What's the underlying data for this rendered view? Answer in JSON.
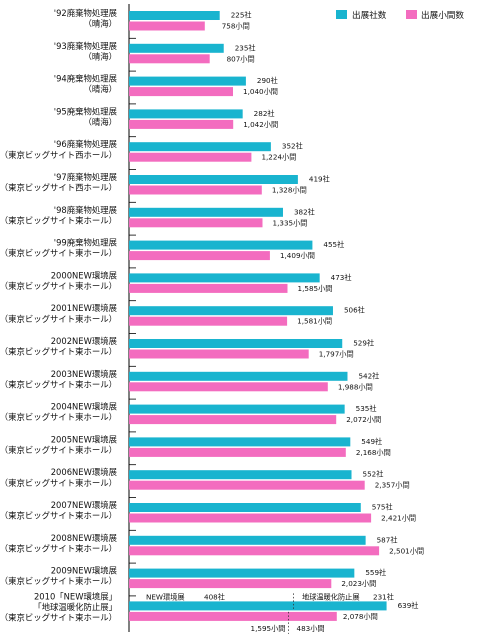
{
  "chart_data": {
    "type": "bar",
    "orientation": "horizontal",
    "series": [
      {
        "name": "出展社数",
        "color": "#19b4cf"
      },
      {
        "name": "出展小間数",
        "color": "#f36cbf"
      }
    ],
    "legend_position": "top-right",
    "rows": [
      {
        "label": [
          "'92廃棄物処理展",
          "（晴海）"
        ],
        "companies": 225,
        "companies_label": "225社",
        "booths": 758,
        "booths_label": "758小間"
      },
      {
        "label": [
          "'93廃棄物処理展",
          "（晴海）"
        ],
        "companies": 235,
        "companies_label": "235社",
        "booths": 807,
        "booths_label": "807小間"
      },
      {
        "label": [
          "'94廃棄物処理展",
          "（晴海）"
        ],
        "companies": 290,
        "companies_label": "290社",
        "booths": 1040,
        "booths_label": "1,040小間"
      },
      {
        "label": [
          "'95廃棄物処理展",
          "（晴海）"
        ],
        "companies": 282,
        "companies_label": "282社",
        "booths": 1042,
        "booths_label": "1,042小間"
      },
      {
        "label": [
          "'96廃棄物処理展",
          "（東京ビッグサイト西ホール）"
        ],
        "companies": 352,
        "companies_label": "352社",
        "booths": 1224,
        "booths_label": "1,224小間"
      },
      {
        "label": [
          "'97廃棄物処理展",
          "（東京ビッグサイト西ホール）"
        ],
        "companies": 419,
        "companies_label": "419社",
        "booths": 1328,
        "booths_label": "1,328小間"
      },
      {
        "label": [
          "'98廃棄物処理展",
          "（東京ビッグサイト東ホール）"
        ],
        "companies": 382,
        "companies_label": "382社",
        "booths": 1335,
        "booths_label": "1,335小間"
      },
      {
        "label": [
          "'99廃棄物処理展",
          "（東京ビッグサイト東ホール）"
        ],
        "companies": 455,
        "companies_label": "455社",
        "booths": 1409,
        "booths_label": "1,409小間"
      },
      {
        "label": [
          "2000NEW環境展",
          "（東京ビッグサイト東ホール）"
        ],
        "companies": 473,
        "companies_label": "473社",
        "booths": 1585,
        "booths_label": "1,585小間"
      },
      {
        "label": [
          "2001NEW環境展",
          "（東京ビッグサイト東ホール）"
        ],
        "companies": 506,
        "companies_label": "506社",
        "booths": 1581,
        "booths_label": "1,581小間"
      },
      {
        "label": [
          "2002NEW環境展",
          "（東京ビッグサイト東ホール）"
        ],
        "companies": 529,
        "companies_label": "529社",
        "booths": 1797,
        "booths_label": "1,797小間"
      },
      {
        "label": [
          "2003NEW環境展",
          "（東京ビッグサイト東ホール）"
        ],
        "companies": 542,
        "companies_label": "542社",
        "booths": 1988,
        "booths_label": "1,988小間"
      },
      {
        "label": [
          "2004NEW環境展",
          "（東京ビッグサイト東ホール）"
        ],
        "companies": 535,
        "companies_label": "535社",
        "booths": 2072,
        "booths_label": "2,072小間"
      },
      {
        "label": [
          "2005NEW環境展",
          "（東京ビッグサイト東ホール）"
        ],
        "companies": 549,
        "companies_label": "549社",
        "booths": 2168,
        "booths_label": "2,168小間"
      },
      {
        "label": [
          "2006NEW環境展",
          "（東京ビッグサイト東ホール）"
        ],
        "companies": 552,
        "companies_label": "552社",
        "booths": 2357,
        "booths_label": "2,357小間"
      },
      {
        "label": [
          "2007NEW環境展",
          "（東京ビッグサイト東ホール）"
        ],
        "companies": 575,
        "companies_label": "575社",
        "booths": 2421,
        "booths_label": "2,421小間"
      },
      {
        "label": [
          "2008NEW環境展",
          "（東京ビッグサイト東ホール）"
        ],
        "companies": 587,
        "companies_label": "587社",
        "booths": 2501,
        "booths_label": "2,501小間"
      },
      {
        "label": [
          "2009NEW環境展",
          "（東京ビッグサイト東ホール）"
        ],
        "companies": 559,
        "companies_label": "559社",
        "booths": 2023,
        "booths_label": "2,023小間"
      },
      {
        "label": [
          "2010「NEW環境展」",
          "「地球温暖化防止展」",
          "（東京ビッグサイト東ホール）"
        ],
        "companies": 639,
        "companies_label": "639社",
        "booths": 2078,
        "booths_label": "2,078小間",
        "split": {
          "companies_parts": [
            {
              "name": "NEW環境展",
              "value": 408,
              "label": "408社"
            },
            {
              "name": "地球温暖化防止展",
              "value": 231,
              "label": "231社"
            }
          ],
          "booths_parts": [
            {
              "value": 1595,
              "label": "1,595小間"
            },
            {
              "value": 483,
              "label": "483小間"
            }
          ]
        }
      }
    ]
  }
}
